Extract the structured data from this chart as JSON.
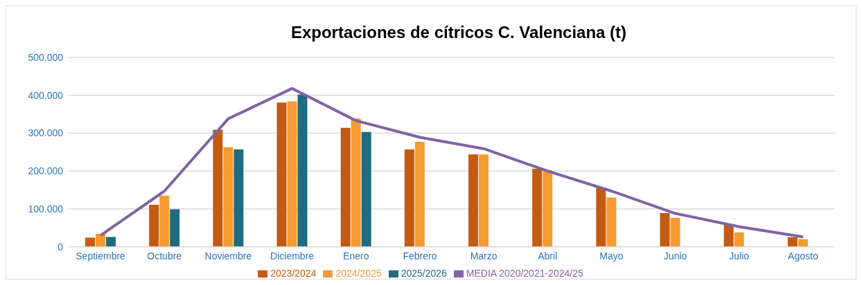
{
  "chart_data": {
    "type": "bar",
    "title": "Exportaciones de cítricos C. Valenciana (t)",
    "categories": [
      "Septiembre",
      "Octubre",
      "Noviembre",
      "Diciembre",
      "Enero",
      "Febrero",
      "Marzo",
      "Abril",
      "Mayo",
      "Junio",
      "Julio",
      "Agosto"
    ],
    "series": [
      {
        "name": "2023/2024",
        "color": "#c55a11",
        "values": [
          24000,
          111000,
          309000,
          381000,
          314000,
          257000,
          244000,
          206000,
          156000,
          89000,
          60000,
          25000
        ]
      },
      {
        "name": "2024/2025",
        "color": "#f59b32",
        "values": [
          34000,
          135000,
          263000,
          384000,
          339000,
          277000,
          244000,
          202000,
          130000,
          76000,
          38000,
          20000
        ]
      },
      {
        "name": "2025/2026",
        "color": "#1f6b80",
        "values": [
          26000,
          99000,
          257000,
          402000,
          303000,
          null,
          null,
          null,
          null,
          null,
          null,
          null
        ]
      },
      {
        "name": "MEDIA 2020/2021-2024/25",
        "type": "line",
        "color": "#8064a2",
        "values": [
          30000,
          147000,
          338000,
          418000,
          333000,
          289000,
          259000,
          200000,
          147000,
          88000,
          53000,
          26000
        ]
      }
    ],
    "ylim": [
      0,
      500000
    ],
    "yticks": [
      {
        "value": 0,
        "label": "0"
      },
      {
        "value": 100000,
        "label": "100.000"
      },
      {
        "value": 200000,
        "label": "200.000"
      },
      {
        "value": 300000,
        "label": "300.000"
      },
      {
        "value": 400000,
        "label": "400.000"
      },
      {
        "value": 500000,
        "label": "500.000"
      }
    ],
    "grid": "y",
    "legend": "bottom",
    "marker": "none",
    "line_style": "solid"
  }
}
